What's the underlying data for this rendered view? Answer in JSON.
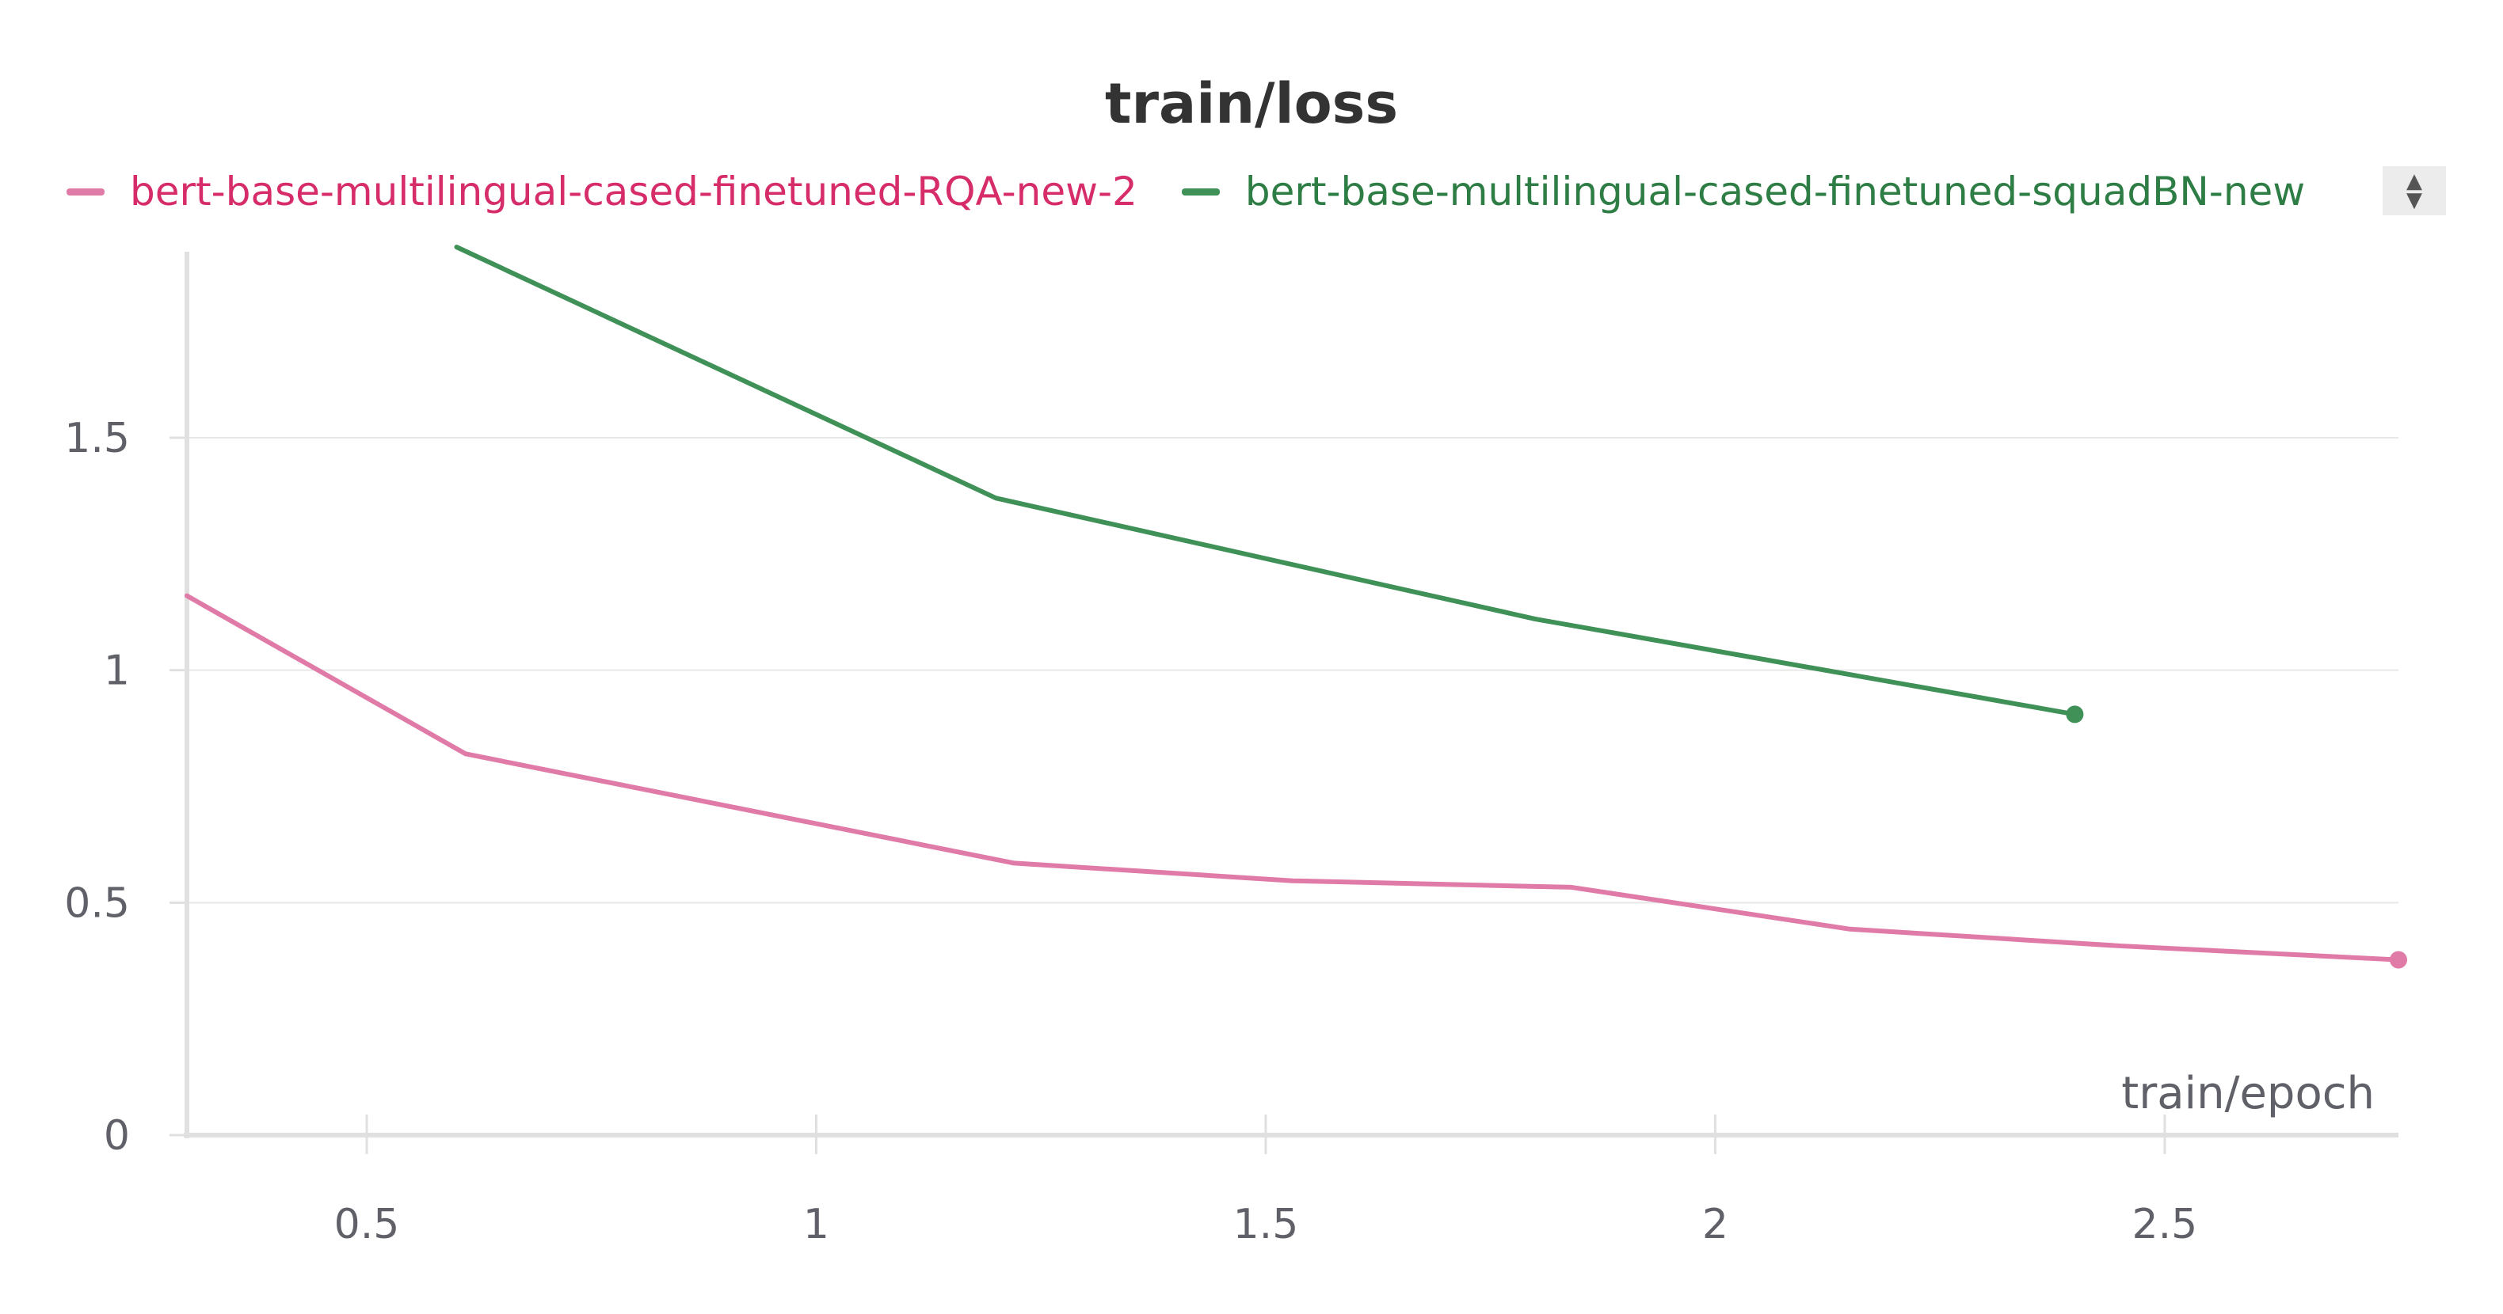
{
  "chart_data": {
    "type": "line",
    "title": "train/loss",
    "xlabel": "train/epoch",
    "ylabel": "",
    "xlim": [
      0.3,
      2.76
    ],
    "ylim": [
      0,
      1.9
    ],
    "xticks": [
      0.5,
      1,
      1.5,
      2,
      2.5
    ],
    "xtick_labels": [
      "0.5",
      "1",
      "1.5",
      "2",
      "2.5"
    ],
    "yticks": [
      0,
      0.5,
      1,
      1.5
    ],
    "ytick_labels": [
      "0",
      "0.5",
      "1",
      "1.5"
    ],
    "grid": true,
    "legend": "top",
    "series": [
      {
        "name": "bert-base-multilingual-cased-finetuned-RQA-new-2",
        "color": "#e07aa6",
        "label_color": "#d62c6a",
        "x": [
          0.3,
          0.61,
          1.22,
          1.53,
          1.84,
          2.15,
          2.45,
          2.76
        ],
        "y": [
          1.16,
          0.82,
          0.585,
          0.547,
          0.533,
          0.443,
          0.407,
          0.377
        ]
      },
      {
        "name": "bert-base-multilingual-cased-finetuned-squadBN-new",
        "color": "#3f9157",
        "label_color": "#2e7d45",
        "x": [
          0.6,
          1.2,
          1.8,
          2.4
        ],
        "y": [
          1.91,
          1.37,
          1.11,
          0.905
        ]
      }
    ]
  }
}
